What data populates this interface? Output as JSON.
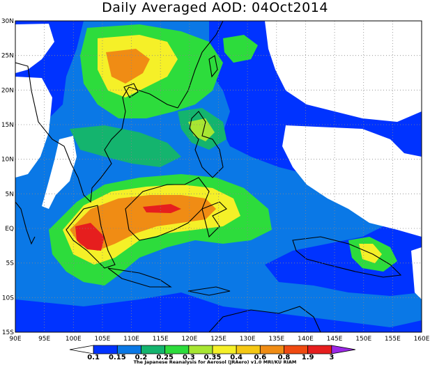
{
  "title": "Daily Averaged AOD: 04Oct2014",
  "credit": "The Japanese Reanalysis for Aerosol (JRAero) v1.0 MRI/KU RIAM",
  "map": {
    "lon_range": [
      90,
      160
    ],
    "lat_range": [
      -15,
      30
    ],
    "lon_ticks": [
      "90E",
      "95E",
      "100E",
      "105E",
      "110E",
      "115E",
      "120E",
      "125E",
      "130E",
      "135E",
      "140E",
      "145E",
      "150E",
      "155E",
      "160E"
    ],
    "lat_ticks": [
      "15S",
      "10S",
      "5S",
      "EQ",
      "5N",
      "10N",
      "15N",
      "20N",
      "25N",
      "30N"
    ],
    "grid": true
  },
  "colorbar": {
    "labels": [
      "0.1",
      "0.15",
      "0.2",
      "0.25",
      "0.3",
      "0.35",
      "0.4",
      "0.6",
      "0.8",
      "1.9",
      "3"
    ],
    "colors": [
      "#ffffff",
      "#0033ff",
      "#0a78e6",
      "#14b46e",
      "#2ddc3c",
      "#a8e632",
      "#f5f028",
      "#f5c814",
      "#f08c14",
      "#f04a10",
      "#e61e1e",
      "#9b28e6"
    ]
  }
}
